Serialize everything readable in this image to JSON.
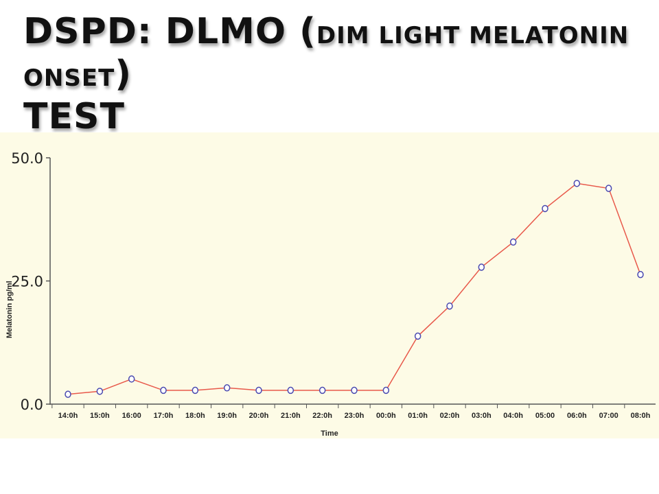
{
  "slide": {
    "title_main": "DSPD: DLMO (",
    "title_small": "DIM LIGHT MELATONIN ONSET",
    "title_close": ")",
    "title_line2": "TEST"
  },
  "chart_data": {
    "type": "line",
    "xlabel": "Time",
    "ylabel": "Melatonin pg/ml",
    "ylim": [
      0,
      50
    ],
    "y_ticks": [
      "0.0",
      "25.0",
      "50.0"
    ],
    "grid": false,
    "categories": [
      "14:0h",
      "15:0h",
      "16:00",
      "17:0h",
      "18:0h",
      "19:0h",
      "20:0h",
      "21:0h",
      "22:0h",
      "23:0h",
      "00:0h",
      "01:0h",
      "02:0h",
      "03:0h",
      "04:0h",
      "05:00",
      "06:0h",
      "07:00",
      "08:0h"
    ],
    "series": [
      {
        "values": [
          2.0,
          2.6,
          5.1,
          2.8,
          2.8,
          3.3,
          2.8,
          2.8,
          2.8,
          2.8,
          2.8,
          13.8,
          19.9,
          27.8,
          32.9,
          39.7,
          44.8,
          43.8,
          26.3
        ],
        "color": "#e8584a",
        "marker_color": "#4a4ab0"
      }
    ],
    "colors": {
      "background": "#fdfbe6",
      "axis": "#555555"
    }
  }
}
